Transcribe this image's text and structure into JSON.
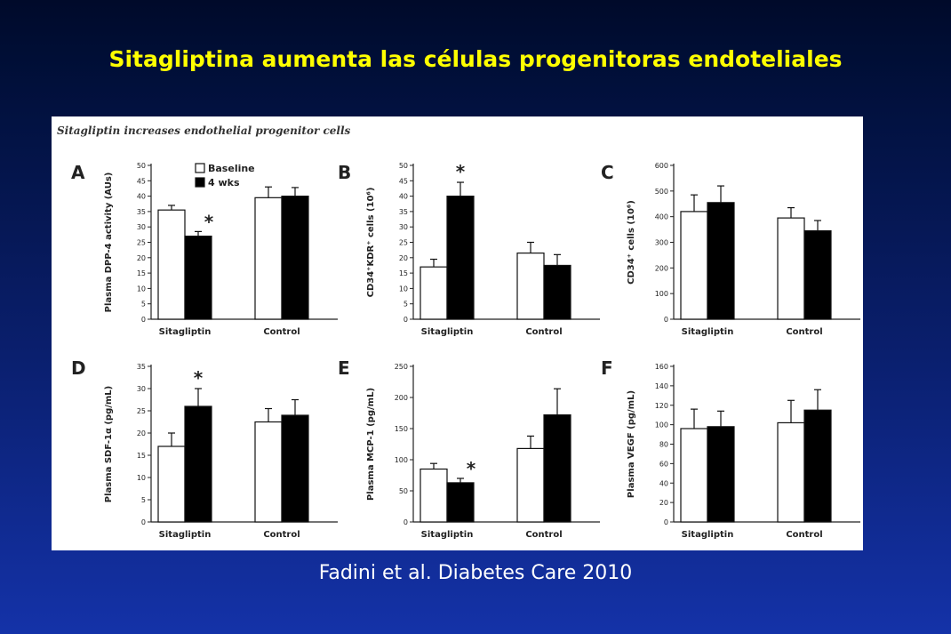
{
  "slide": {
    "title": "Sitagliptina aumenta las células progenitoras endoteliales",
    "citation": "Fadini et al. Diabetes Care 2010"
  },
  "figure": {
    "heading": "Sitagliptin increases endothelial progenitor cells"
  },
  "colors": {
    "baseline": "#ffffff",
    "four_wks": "#000000",
    "title": "#ffff00"
  },
  "chart_data": [
    {
      "type": "bar",
      "panel": "A",
      "ylabel": "Plasma DPP-4 activity (AUs)",
      "ylim": [
        0,
        50
      ],
      "yticks": [
        "0",
        "5",
        "10",
        "15",
        "20",
        "25",
        "30",
        "35",
        "40",
        "45",
        "50"
      ],
      "categories": [
        "Sitagliptin",
        "Control"
      ],
      "legend": [
        "Baseline",
        "4 wks"
      ],
      "series": [
        {
          "name": "Baseline",
          "values": [
            35.5,
            39.5
          ],
          "errors": [
            1.5,
            3.5
          ]
        },
        {
          "name": "4 wks",
          "values": [
            27,
            40
          ],
          "errors": [
            1.5,
            2.8
          ]
        }
      ],
      "annotations": [
        {
          "text": "*",
          "series": 1,
          "category": 0
        }
      ]
    },
    {
      "type": "bar",
      "panel": "B",
      "ylabel": "CD34⁺KDR⁺ cells (10⁶)",
      "ylim": [
        0,
        50
      ],
      "yticks": [
        "0",
        "5",
        "10",
        "15",
        "20",
        "25",
        "30",
        "35",
        "40",
        "45",
        "50"
      ],
      "categories": [
        "Sitagliptin",
        "Control"
      ],
      "series": [
        {
          "values": [
            17,
            21.5
          ],
          "errors": [
            2.5,
            3.5
          ]
        },
        {
          "values": [
            40,
            17.5
          ],
          "errors": [
            4.5,
            3.5
          ]
        }
      ],
      "annotations": [
        {
          "text": "*",
          "series": 1,
          "category": 0
        }
      ]
    },
    {
      "type": "bar",
      "panel": "C",
      "ylabel": "CD34⁺ cells (10⁶)",
      "ylim": [
        0,
        600
      ],
      "yticks": [
        "0",
        "100",
        "200",
        "300",
        "400",
        "500",
        "600"
      ],
      "categories": [
        "Sitagliptin",
        "Control"
      ],
      "series": [
        {
          "values": [
            420,
            395
          ],
          "errors": [
            65,
            40
          ]
        },
        {
          "values": [
            455,
            345
          ],
          "errors": [
            65,
            40
          ]
        }
      ],
      "annotations": []
    },
    {
      "type": "bar",
      "panel": "D",
      "ylabel": "Plasma SDF-1α (pg/mL)",
      "ylim": [
        0,
        35
      ],
      "yticks": [
        "0",
        "5",
        "10",
        "15",
        "20",
        "25",
        "30",
        "35"
      ],
      "categories": [
        "Sitagliptin",
        "Control"
      ],
      "series": [
        {
          "values": [
            17,
            22.5
          ],
          "errors": [
            3,
            3
          ]
        },
        {
          "values": [
            26,
            24
          ],
          "errors": [
            4,
            3.5
          ]
        }
      ],
      "annotations": [
        {
          "text": "*",
          "series": 1,
          "category": 0
        }
      ]
    },
    {
      "type": "bar",
      "panel": "E",
      "ylabel": "Plasma MCP-1 (pg/mL)",
      "ylim": [
        0,
        250
      ],
      "yticks": [
        "0",
        "50",
        "100",
        "150",
        "200",
        "250"
      ],
      "categories": [
        "Sitagliptin",
        "Control"
      ],
      "series": [
        {
          "values": [
            85,
            118
          ],
          "errors": [
            9,
            20
          ]
        },
        {
          "values": [
            63,
            172
          ],
          "errors": [
            7,
            42
          ]
        }
      ],
      "annotations": [
        {
          "text": "*",
          "series": 1,
          "category": 0
        }
      ]
    },
    {
      "type": "bar",
      "panel": "F",
      "ylabel": "Plasma VEGF (pg/mL)",
      "ylim": [
        0,
        160
      ],
      "yticks": [
        "0",
        "20",
        "40",
        "60",
        "80",
        "100",
        "120",
        "140",
        "160"
      ],
      "categories": [
        "Sitagliptin",
        "Control"
      ],
      "series": [
        {
          "values": [
            96,
            102
          ],
          "errors": [
            20,
            23
          ]
        },
        {
          "values": [
            98,
            115
          ],
          "errors": [
            16,
            21
          ]
        }
      ],
      "annotations": []
    }
  ]
}
